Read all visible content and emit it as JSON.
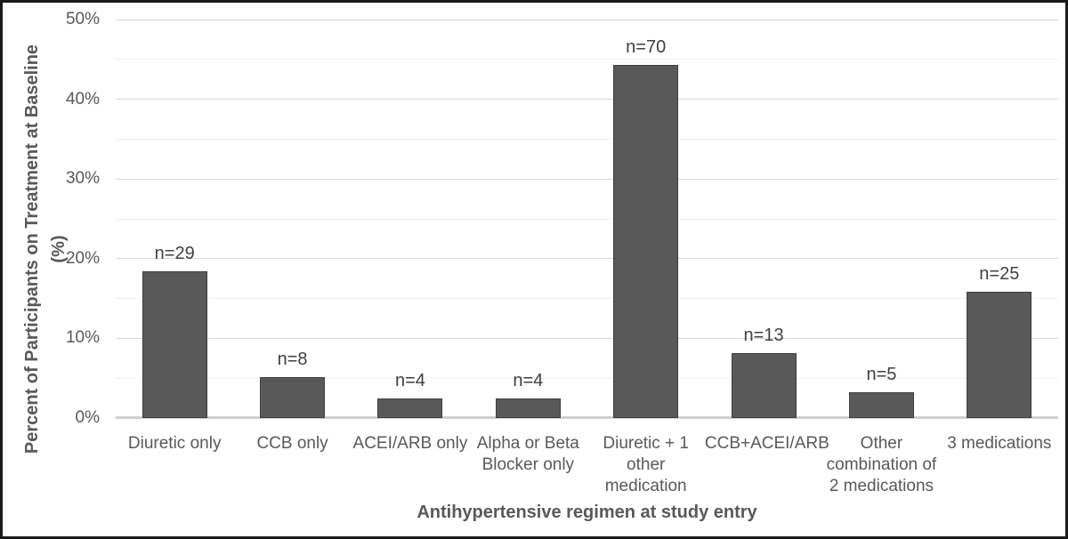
{
  "chart_data": {
    "type": "bar",
    "title": "",
    "xlabel": "Antihypertensive regimen at study entry",
    "ylabel": "Percent of Participants on Treatment at Baseline (%)",
    "ylabel_lines": [
      "Percent of Participants on Treatment at Baseline",
      "(%)"
    ],
    "categories": [
      "Diuretic only",
      "CCB only",
      "ACEI/ARB only",
      "Alpha or Beta Blocker only",
      "Diuretic + 1 other medication",
      "CCB+ACEI/ARB",
      "Other combination of 2 medications",
      "3 medications"
    ],
    "values": [
      18.4,
      5.1,
      2.5,
      2.5,
      44.3,
      8.2,
      3.2,
      15.8
    ],
    "counts": [
      29,
      8,
      4,
      4,
      70,
      13,
      5,
      25
    ],
    "bar_labels": [
      "n=29",
      "n=8",
      "n=4",
      "n=4",
      "n=70",
      "n=13",
      "n=5",
      "n=25"
    ],
    "ylim": [
      0,
      50
    ],
    "y_ticks": [
      {
        "value": 0,
        "label": "0%"
      },
      {
        "value": 10,
        "label": "10%"
      },
      {
        "value": 20,
        "label": "20%"
      },
      {
        "value": 30,
        "label": "30%"
      },
      {
        "value": 40,
        "label": "40%"
      },
      {
        "value": 50,
        "label": "50%"
      }
    ],
    "y_major_step": 10,
    "y_minor_step": 5,
    "grid": true,
    "legend": false,
    "colors": {
      "bar_fill": "#595959",
      "bar_border": "#3f3f3f",
      "axis_text": "#595959",
      "n_label_text": "#404040",
      "major_gridline": "#d9d9d9",
      "minor_gridline": "#f0f0f0",
      "axis_line": "#d0d0d0",
      "figure_border": "#1a1a1a",
      "background": "#ffffff"
    }
  }
}
